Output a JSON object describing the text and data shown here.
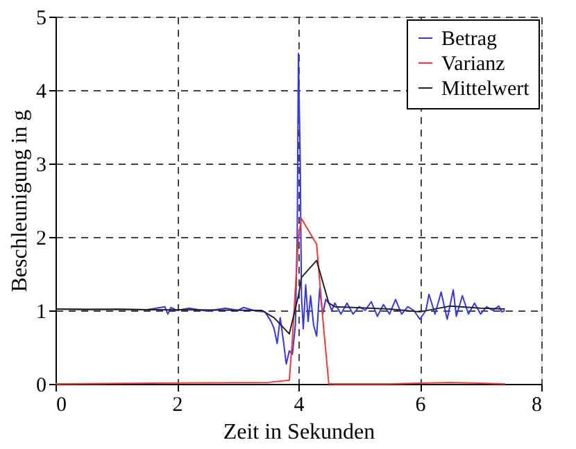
{
  "chart_data": {
    "type": "line",
    "xlabel": "Zeit in Sekunden",
    "ylabel": "Beschleunigung in g",
    "xlim": [
      0,
      8
    ],
    "ylim": [
      0,
      5
    ],
    "xticks": [
      0,
      2,
      4,
      6,
      8
    ],
    "yticks": [
      0,
      1,
      2,
      3,
      4,
      5
    ],
    "grid": true,
    "legend": "top right",
    "line_style": "solid",
    "marker": "none",
    "series": [
      {
        "name": "Betrag",
        "color": "#3333ff",
        "x": [
          0,
          0.5,
          1.0,
          1.5,
          1.8,
          1.85,
          1.9,
          2.0,
          2.2,
          2.5,
          2.8,
          3.0,
          3.1,
          3.3,
          3.45,
          3.55,
          3.6,
          3.65,
          3.7,
          3.75,
          3.8,
          3.85,
          3.9,
          3.95,
          3.98,
          4.0,
          4.03,
          4.05,
          4.08,
          4.12,
          4.16,
          4.2,
          4.25,
          4.3,
          4.35,
          4.4,
          4.45,
          4.5,
          4.55,
          4.6,
          4.7,
          4.8,
          4.9,
          5.0,
          5.1,
          5.2,
          5.3,
          5.4,
          5.5,
          5.6,
          5.7,
          5.8,
          5.9,
          6.0,
          6.1,
          6.15,
          6.25,
          6.35,
          6.45,
          6.55,
          6.6,
          6.7,
          6.8,
          6.9,
          7.0,
          7.1,
          7.2,
          7.3,
          7.35,
          7.4
        ],
        "values": [
          1.02,
          1.01,
          1.02,
          1.01,
          1.05,
          0.95,
          1.04,
          1.0,
          1.03,
          0.99,
          1.03,
          1.0,
          1.04,
          0.99,
          0.98,
          0.85,
          0.75,
          0.55,
          0.9,
          0.6,
          0.27,
          0.45,
          0.4,
          0.8,
          2.0,
          4.5,
          3.0,
          1.2,
          0.75,
          1.35,
          0.85,
          1.2,
          0.8,
          0.65,
          1.3,
          0.95,
          1.15,
          1.1,
          1.0,
          1.1,
          0.95,
          1.1,
          0.95,
          1.05,
          1.0,
          1.12,
          0.92,
          1.08,
          0.95,
          1.15,
          0.95,
          1.05,
          1.0,
          0.88,
          1.0,
          1.22,
          0.95,
          1.25,
          0.88,
          1.28,
          0.92,
          1.2,
          0.95,
          1.1,
          0.95,
          1.05,
          1.0,
          1.06,
          0.98,
          1.0
        ]
      },
      {
        "name": "Varianz",
        "color": "#ff3333",
        "x": [
          0,
          3.5,
          3.85,
          3.9,
          4.0,
          4.05,
          4.3,
          4.4,
          4.5,
          5.5,
          6.5,
          7.4
        ],
        "values": [
          0,
          0.02,
          0.05,
          0.6,
          2.0,
          2.25,
          1.9,
          0.9,
          0,
          0,
          0.02,
          0
        ]
      },
      {
        "name": "Mittelwert",
        "color": "#222222",
        "x": [
          0,
          3.4,
          3.6,
          3.85,
          4.0,
          4.05,
          4.3,
          4.5,
          4.6,
          5.5,
          6.0,
          6.5,
          7.0,
          7.4
        ],
        "values": [
          1.02,
          1.0,
          0.9,
          0.68,
          1.2,
          1.45,
          1.68,
          1.1,
          1.05,
          1.02,
          0.98,
          1.06,
          1.03,
          1.02
        ]
      }
    ]
  }
}
